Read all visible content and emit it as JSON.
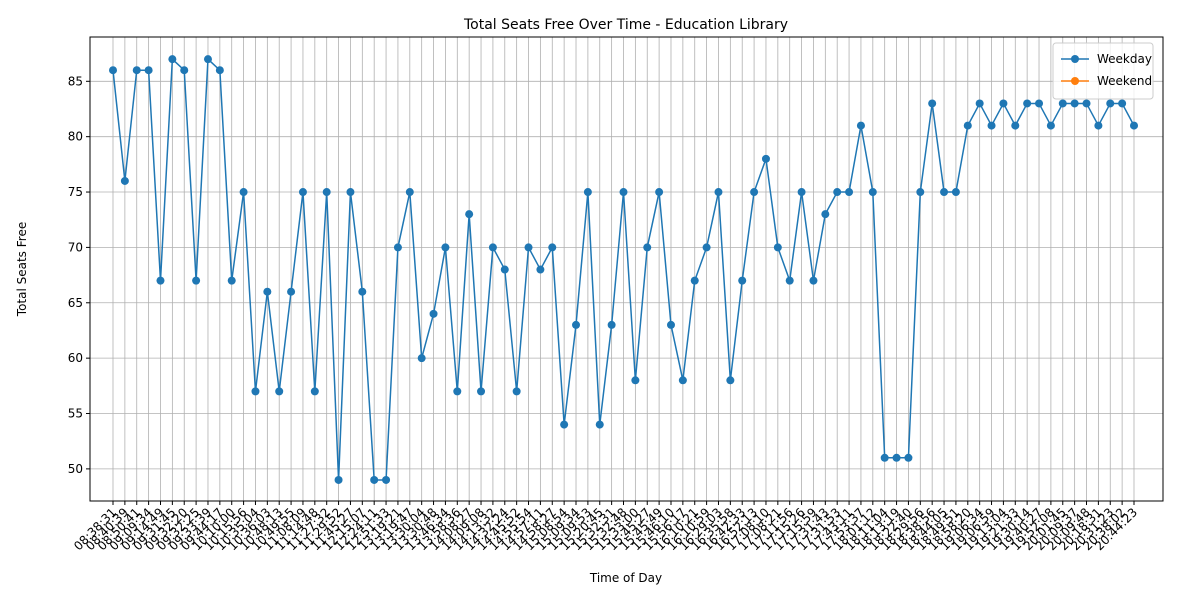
{
  "chart_data": {
    "type": "line",
    "title": "Total Seats Free Over Time - Education Library",
    "xlabel": "Time of Day",
    "ylabel": "Total Seats Free",
    "categories": [
      "08:38:31",
      "08:40:39",
      "08:50:41",
      "09:09:34",
      "09:14:49",
      "09:31:45",
      "09:32:20",
      "09:32:25",
      "09:33:39",
      "09:44:17",
      "10:10:00",
      "10:15:56",
      "10:35:04",
      "10:36:03",
      "10:48:13",
      "10:49:55",
      "11:08:09",
      "11:14:48",
      "11:27:32",
      "11:29:52",
      "11:45:27",
      "12:15:07",
      "12:24:11",
      "12:51:33",
      "13:19:21",
      "13:19:47",
      "13:30:04",
      "13:30:48",
      "13:46:34",
      "13:58:36",
      "14:08:27",
      "14:09:08",
      "14:13:32",
      "14:32:24",
      "14:45:52",
      "14:55:54",
      "14:57:11",
      "14:58:27",
      "15:08:54",
      "15:09:34",
      "15:09:53",
      "15:20:45",
      "15:32:31",
      "15:32:48",
      "15:33:00",
      "15:45:27",
      "15:45:49",
      "15:46:10",
      "15:56:17",
      "16:10:21",
      "16:10:59",
      "16:29:03",
      "16:35:58",
      "16:42:33",
      "16:52:13",
      "17:08:10",
      "17:08:21",
      "17:11:56",
      "17:15:26",
      "17:15:59",
      "17:31:43",
      "17:31:53",
      "17:43:11",
      "17:53:37",
      "18:01:12",
      "18:11:04",
      "18:13:19",
      "18:22:40",
      "18:29:56",
      "18:38:56",
      "18:44:05",
      "18:49:51",
      "18:58:20",
      "19:06:34",
      "19:06:59",
      "19:13:04",
      "19:21:33",
      "19:30:14",
      "19:40:27",
      "19:52:08",
      "20:01:45",
      "20:09:37",
      "20:09:48",
      "20:18:31",
      "20:31:23",
      "20:38:02",
      "20:44:23"
    ],
    "series": [
      {
        "name": "Weekday",
        "color": "#1f77b4",
        "values": [
          86,
          76,
          86,
          86,
          67,
          87,
          86,
          67,
          87,
          86,
          67,
          75,
          57,
          66,
          57,
          66,
          75,
          57,
          75,
          49,
          75,
          66,
          49,
          49,
          70,
          75,
          60,
          64,
          70,
          57,
          73,
          57,
          70,
          68,
          57,
          70,
          68,
          70,
          54,
          63,
          75,
          54,
          63,
          75,
          58,
          70,
          75,
          63,
          58,
          67,
          70,
          75,
          58,
          67,
          75,
          78,
          70,
          67,
          75,
          67,
          73,
          75,
          75,
          81,
          75,
          51,
          51,
          51,
          75,
          83,
          75,
          75,
          81,
          83,
          81,
          83,
          81,
          83,
          83,
          81,
          83,
          83,
          83,
          81,
          83,
          83,
          81
        ]
      },
      {
        "name": "Weekend",
        "color": "#ff7f0e",
        "values": [
          null,
          null,
          null,
          null,
          null,
          null,
          null,
          null,
          null,
          null,
          null,
          null,
          null,
          null,
          null,
          null,
          null,
          null,
          null,
          null,
          null,
          null,
          null,
          null,
          null,
          null,
          null,
          null,
          null,
          null,
          null,
          null,
          null,
          null,
          null,
          null,
          null,
          null,
          null,
          null,
          null,
          null,
          null,
          null,
          null,
          null,
          null,
          null,
          null,
          null,
          null,
          null,
          null,
          null,
          null,
          null,
          null,
          null,
          null,
          null,
          null,
          null,
          null,
          null,
          null,
          null,
          null,
          null,
          null,
          null,
          null,
          null,
          null,
          null,
          null,
          null,
          null,
          null,
          null,
          null,
          null,
          null,
          null,
          null,
          null,
          null,
          null
        ]
      }
    ],
    "ylim": [
      47.1,
      89.0
    ],
    "yticks": [
      50,
      55,
      60,
      65,
      70,
      75,
      80,
      85
    ],
    "grid": true,
    "legend": "upper right"
  }
}
